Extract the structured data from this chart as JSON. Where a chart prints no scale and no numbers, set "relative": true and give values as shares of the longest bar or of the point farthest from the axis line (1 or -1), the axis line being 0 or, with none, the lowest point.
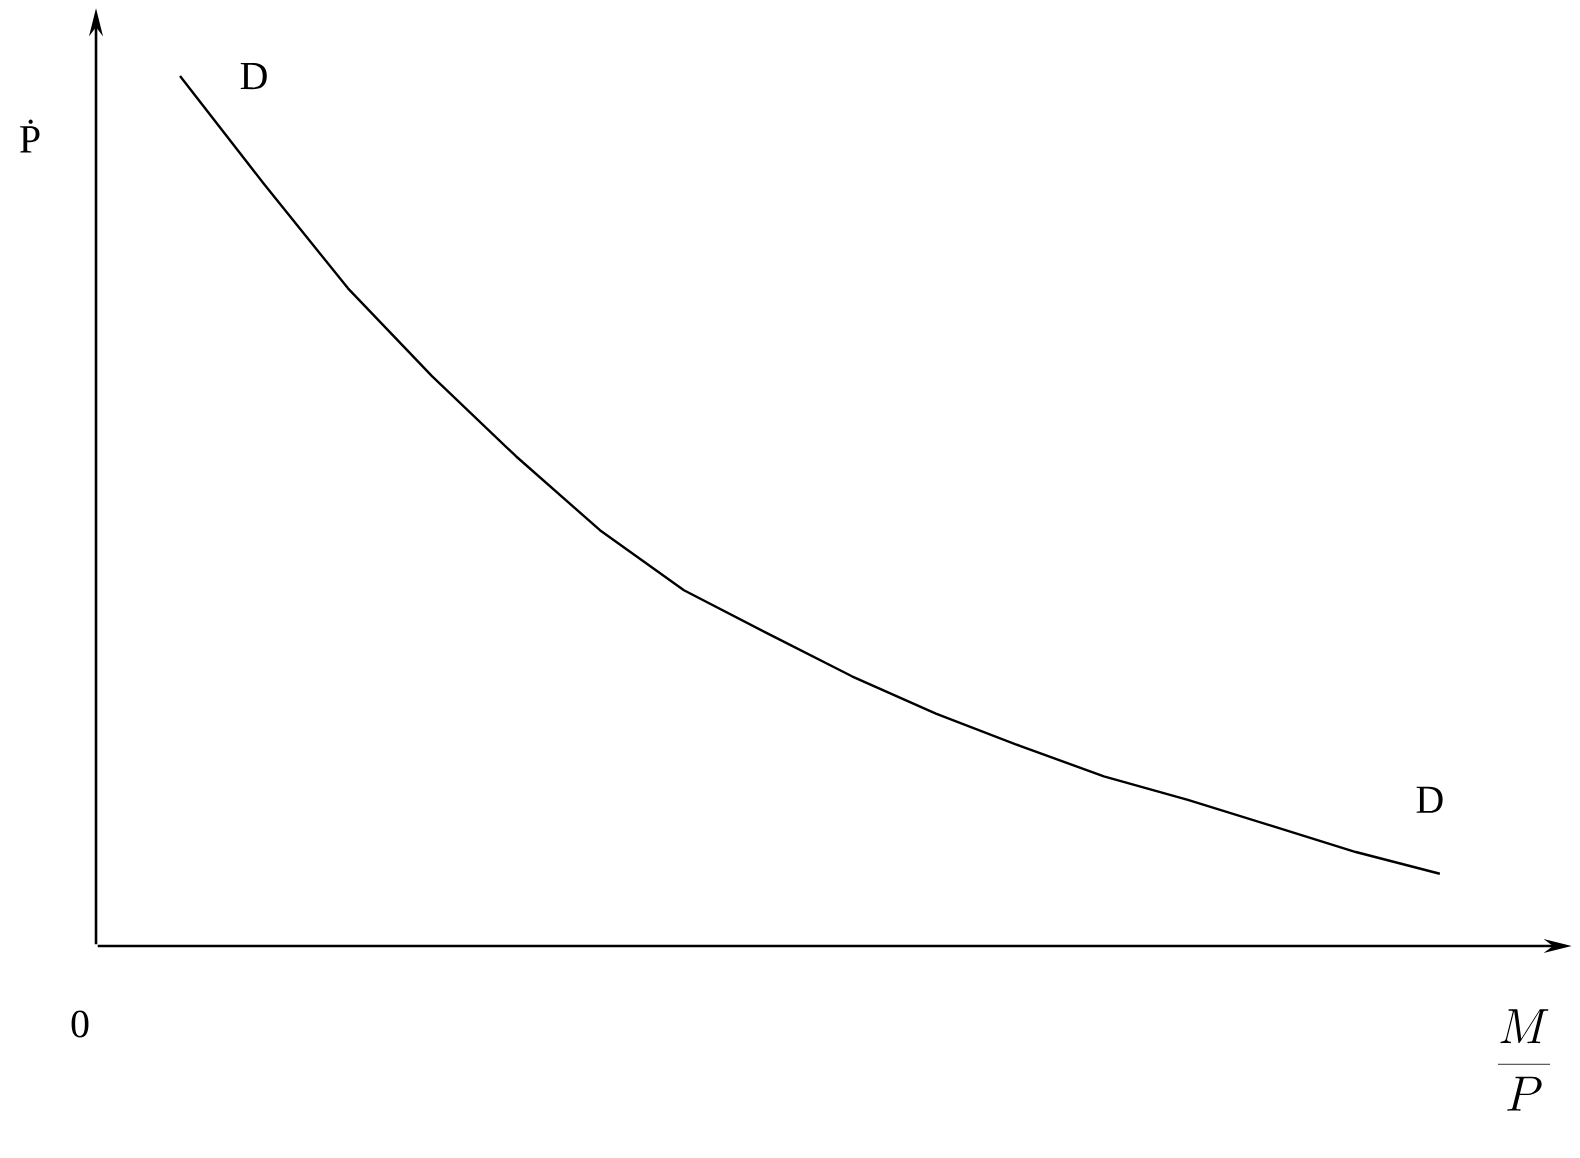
{
  "chart_data": {
    "type": "line",
    "relative": true,
    "color": "#000000",
    "ylabel": "Ṗ",
    "xlabel": "\\frac{M}{P}",
    "categories": [
      null,
      null,
      null,
      null,
      null,
      null,
      null,
      null,
      null,
      null,
      null,
      null,
      null,
      null,
      null,
      null
    ],
    "values": [
      1,
      0.876,
      0.756,
      0.655,
      0.563,
      0.478,
      0.409,
      0.359,
      0.31,
      0.267,
      0.23,
      0.195,
      0.168,
      0.138,
      0.108,
      0.083
    ],
    "annotations": [
      "D",
      "D",
      "0"
    ]
  }
}
